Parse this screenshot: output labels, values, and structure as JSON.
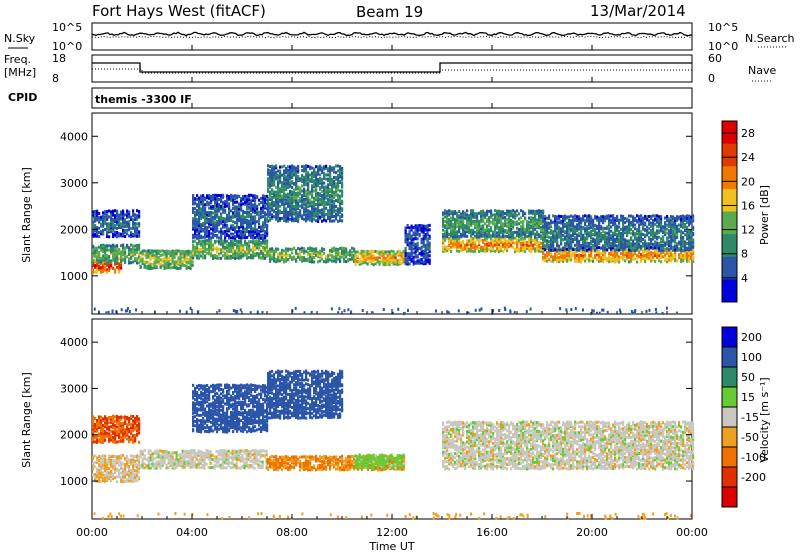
{
  "header": {
    "station": "Fort Hays West (fitACF)",
    "beam": "Beam 19",
    "date": "13/Mar/2014"
  },
  "noise_panel": {
    "left_label": "N.Sky",
    "right_label": "N.Search",
    "ticks_left": [
      "10^5",
      "10^0"
    ],
    "ticks_right": [
      "10^5",
      "10^0"
    ]
  },
  "freq_panel": {
    "left_label_1": "Freq.",
    "left_label_2": "[MHz]",
    "right_label": "Nave",
    "ticks_left": [
      "18",
      "8"
    ],
    "ticks_right": [
      "60",
      "0"
    ],
    "cpid_label": "CPID",
    "cpid_text": "themis -3300 IF"
  },
  "chart_data": [
    {
      "type": "heatmap",
      "name": "power",
      "ylabel": "Slant Range [km]",
      "xlabel": "Time UT",
      "x_ticks": [
        "00:00",
        "04:00",
        "08:00",
        "12:00",
        "16:00",
        "20:00",
        "00:00"
      ],
      "x_range_hours": [
        0,
        24
      ],
      "y_ticks": [
        1000,
        2000,
        3000,
        4000
      ],
      "ylim": [
        180,
        4500
      ],
      "colorbar_label": "Power [dB]",
      "colorbar_ticks": [
        4,
        8,
        12,
        16,
        20,
        24,
        28
      ],
      "colorbar_range": [
        0,
        30
      ],
      "colors": [
        "#0000dd",
        "#2a55a8",
        "#2e8a66",
        "#5aab4e",
        "#f0c020",
        "#f07a00",
        "#e03a00",
        "#dd0000"
      ],
      "bands": [
        {
          "t0": 0.0,
          "t1": 1.2,
          "r_center": 1250,
          "r_halfwidth": 120,
          "level": 27
        },
        {
          "t0": 0.0,
          "t1": 1.9,
          "r_center": 1500,
          "r_halfwidth": 200,
          "level": 14
        },
        {
          "t0": 0.0,
          "t1": 1.9,
          "r_center": 2150,
          "r_halfwidth": 250,
          "level": 7
        },
        {
          "t0": 1.9,
          "t1": 4.0,
          "r_center": 1380,
          "r_halfwidth": 180,
          "level": 16
        },
        {
          "t0": 4.0,
          "t1": 7.0,
          "r_center": 1600,
          "r_halfwidth": 200,
          "level": 15
        },
        {
          "t0": 7.0,
          "t1": 10.5,
          "r_center": 1480,
          "r_halfwidth": 150,
          "level": 14
        },
        {
          "t0": 10.5,
          "t1": 12.5,
          "r_center": 1420,
          "r_halfwidth": 110,
          "level": 20
        },
        {
          "t0": 7.0,
          "t1": 10.0,
          "r_center": 2800,
          "r_halfwidth": 600,
          "level": 10
        },
        {
          "t0": 4.0,
          "t1": 7.0,
          "r_center": 2300,
          "r_halfwidth": 450,
          "level": 7
        },
        {
          "t0": 12.5,
          "t1": 13.5,
          "r_center": 1700,
          "r_halfwidth": 400,
          "level": 6
        },
        {
          "t0": 14.0,
          "t1": 18.0,
          "r_center": 1700,
          "r_halfwidth": 150,
          "level": 22
        },
        {
          "t0": 14.0,
          "t1": 18.0,
          "r_center": 2150,
          "r_halfwidth": 250,
          "level": 12
        },
        {
          "t0": 18.0,
          "t1": 24.0,
          "r_center": 1480,
          "r_halfwidth": 130,
          "level": 21
        },
        {
          "t0": 18.0,
          "t1": 24.0,
          "r_center": 1950,
          "r_halfwidth": 350,
          "level": 9
        }
      ]
    },
    {
      "type": "heatmap",
      "name": "velocity",
      "ylabel": "Slant Range [km]",
      "xlabel": "Time UT",
      "x_ticks": [
        "00:00",
        "04:00",
        "08:00",
        "12:00",
        "16:00",
        "20:00",
        "00:00"
      ],
      "x_range_hours": [
        0,
        24
      ],
      "y_ticks": [
        1000,
        2000,
        3000,
        4000
      ],
      "ylim": [
        180,
        4500
      ],
      "colorbar_label": "Velocity [m s⁻¹]",
      "colorbar_ticks": [
        "200",
        "100",
        "50",
        "15",
        "-15",
        "-50",
        "-100",
        "-200"
      ],
      "colors": [
        "#0000dd",
        "#2a55a8",
        "#2e8a66",
        "#66cc33",
        "#c8c8c0",
        "#f0a020",
        "#f07000",
        "#e03000",
        "#dd0000"
      ],
      "bands": [
        {
          "t0": 0.0,
          "t1": 1.9,
          "r_center": 1300,
          "r_halfwidth": 250,
          "level": -15
        },
        {
          "t0": 0.0,
          "t1": 1.9,
          "r_center": 2150,
          "r_halfwidth": 250,
          "level": -100
        },
        {
          "t0": 1.9,
          "t1": 7.0,
          "r_center": 1500,
          "r_halfwidth": 200,
          "level": 0
        },
        {
          "t0": 7.0,
          "t1": 12.5,
          "r_center": 1420,
          "r_halfwidth": 130,
          "level": -50
        },
        {
          "t0": 7.0,
          "t1": 10.0,
          "r_center": 2900,
          "r_halfwidth": 500,
          "level": 150
        },
        {
          "t0": 4.0,
          "t1": 7.0,
          "r_center": 2600,
          "r_halfwidth": 500,
          "level": 120
        },
        {
          "t0": 10.5,
          "t1": 12.5,
          "r_center": 1450,
          "r_halfwidth": 120,
          "level": 30
        },
        {
          "t0": 14.0,
          "t1": 24.0,
          "r_center": 1800,
          "r_halfwidth": 500,
          "level": 0
        }
      ]
    }
  ]
}
